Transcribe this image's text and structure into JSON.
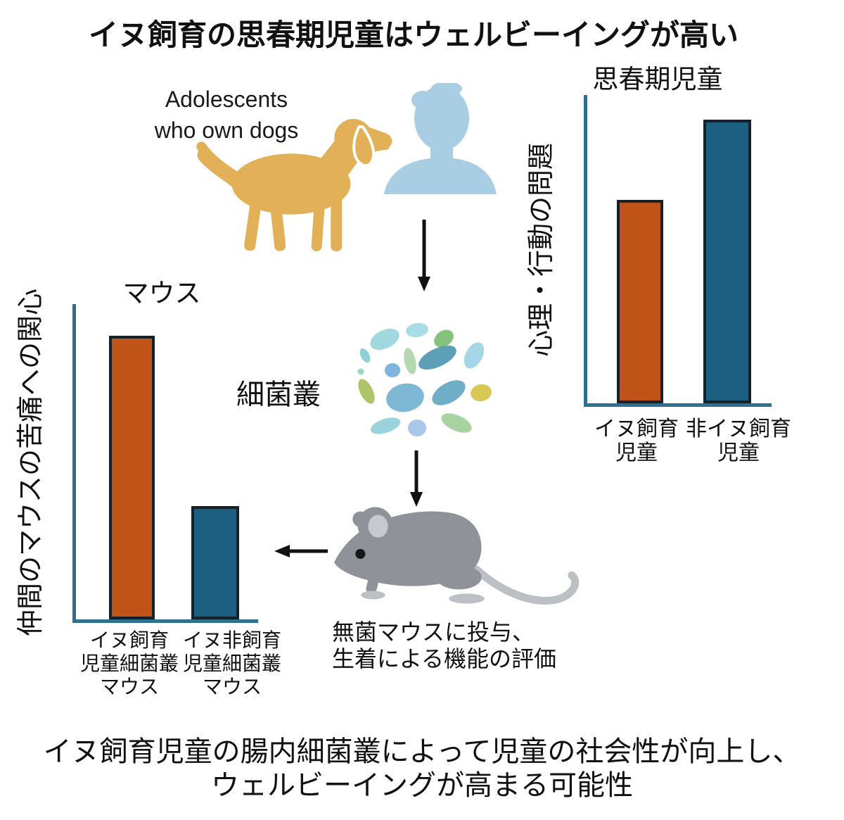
{
  "title": "イヌ飼育の思春期児童はウェルビーイングが高い",
  "adolescents": {
    "label": [
      "Adolescents",
      "who own dogs"
    ]
  },
  "microbiome": {
    "label": "細菌叢"
  },
  "mouse_step": {
    "caption": [
      "無菌マウスに投与、",
      "生着による機能の評価"
    ]
  },
  "conclusion": [
    "イヌ飼育児童の腸内細菌叢によって児童の社会性が向上し、",
    "ウェルビーイングが高まる可能性"
  ],
  "icons": {
    "dog": "dog-icon",
    "person": "person-icon",
    "microbiome": "microbiome-icon",
    "mouse": "mouse-icon",
    "arrow_down_1": "arrow-down-icon",
    "arrow_down_2": "arrow-down-icon",
    "arrow_left": "arrow-left-icon"
  },
  "colors": {
    "bar_orange": "#C05317",
    "bar_blue": "#1C5F80",
    "bar_border": "#15222C",
    "axis": "#2E6F8E",
    "dog": "#E1B057",
    "person": "#A9CDE3",
    "mouse_body": "#8F9399",
    "mouse_light": "#BCC0C4",
    "arrow": "#111111"
  },
  "chart_data": [
    {
      "id": "adolescents-chart",
      "type": "bar",
      "title": "思春期児童",
      "xlabel": "",
      "ylabel": "心理・行動の問題",
      "categories": [
        [
          "イヌ飼育",
          "児童"
        ],
        [
          "非イヌ飼育",
          "児童"
        ]
      ],
      "values": [
        66,
        92
      ],
      "ylim": [
        0,
        100
      ],
      "bar_colors": [
        "#C05317",
        "#1C5F80"
      ],
      "grid": false,
      "legend": false
    },
    {
      "id": "mice-chart",
      "type": "bar",
      "title": "マウス",
      "xlabel": "",
      "ylabel": "仲間のマウスの苦痛への関心",
      "categories": [
        [
          "イヌ飼育",
          "児童細菌叢",
          "マウス"
        ],
        [
          "イヌ非飼育",
          "児童細菌叢",
          "マウス"
        ]
      ],
      "values": [
        90,
        36
      ],
      "ylim": [
        0,
        100
      ],
      "bar_colors": [
        "#C05317",
        "#1C5F80"
      ],
      "grid": false,
      "legend": false
    }
  ]
}
